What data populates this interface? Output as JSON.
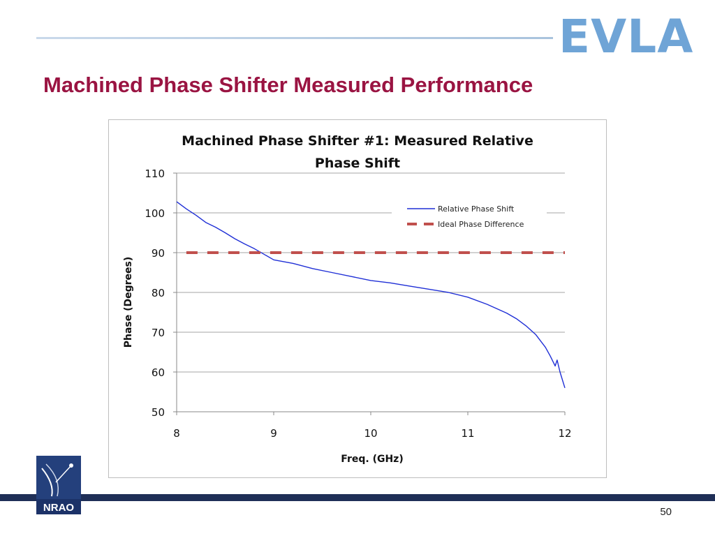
{
  "slide": {
    "title": "Machined Phase Shifter Measured Performance",
    "logo_text": "EVLA",
    "nrao_logo_text": "NRAO",
    "page_number": "50"
  },
  "colors": {
    "title": "#9a1442",
    "measured_line": "#1f2fd6",
    "ideal_line": "#c0504d",
    "logo": "#6fa4d6",
    "band": "#1f2f57"
  },
  "chart_data": {
    "type": "line",
    "title_lines": [
      "Machined Phase Shifter #1: Measured Relative",
      "Phase Shift"
    ],
    "xlabel": "Freq. (GHz)",
    "ylabel": "Phase (Degrees)",
    "xlim": [
      8,
      12
    ],
    "ylim": [
      50,
      110
    ],
    "x_ticks": [
      "8",
      "9",
      "10",
      "11",
      "12"
    ],
    "y_ticks": [
      "50",
      "60",
      "70",
      "80",
      "90",
      "100",
      "110"
    ],
    "grid": "horizontal",
    "legend_position": "top-right",
    "series": [
      {
        "name": "Relative Phase Shift",
        "style": "solid",
        "x": [
          8.0,
          8.1,
          8.2,
          8.3,
          8.4,
          8.5,
          8.6,
          8.7,
          8.8,
          8.9,
          9.0,
          9.2,
          9.4,
          9.6,
          9.8,
          10.0,
          10.2,
          10.4,
          10.6,
          10.8,
          11.0,
          11.2,
          11.4,
          11.5,
          11.6,
          11.7,
          11.8,
          11.85,
          11.9,
          11.92,
          11.95,
          12.0
        ],
        "y": [
          102.8,
          101.0,
          99.4,
          97.6,
          96.4,
          95.0,
          93.5,
          92.2,
          91.0,
          89.6,
          88.2,
          87.3,
          86.0,
          85.0,
          84.0,
          83.0,
          82.4,
          81.6,
          80.8,
          80.0,
          78.8,
          77.0,
          74.8,
          73.4,
          71.6,
          69.4,
          66.2,
          64.0,
          61.5,
          63.0,
          60.0,
          56.0
        ]
      },
      {
        "name": "Ideal Phase Difference",
        "style": "dashed",
        "x": [
          8.1,
          12.0
        ],
        "y": [
          90,
          90
        ]
      }
    ]
  }
}
